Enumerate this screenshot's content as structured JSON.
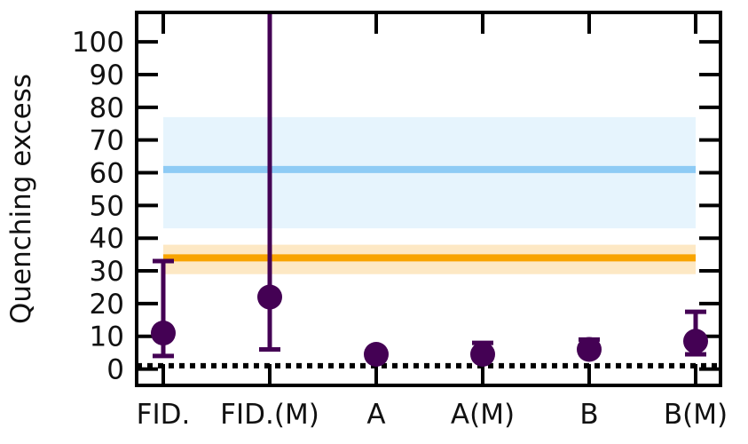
{
  "chart_data": {
    "type": "scatter",
    "ylabel": "Quenching excess",
    "xlabel": "",
    "categories": [
      "FID.",
      "FID.(M)",
      "A",
      "A(M)",
      "B",
      "B(M)"
    ],
    "ylim": [
      -5,
      109
    ],
    "yticks": [
      0,
      10,
      20,
      30,
      40,
      50,
      60,
      70,
      80,
      90,
      100
    ],
    "grid": false,
    "series": [
      {
        "values": [
          11,
          22,
          4.5,
          4.5,
          6,
          8.5
        ],
        "err_low": [
          4,
          6,
          null,
          null,
          null,
          4.5
        ],
        "err_high": [
          33,
          109,
          null,
          8,
          9,
          17.5
        ],
        "color": "#440154"
      }
    ],
    "reference_lines": [
      {
        "y": 61,
        "band": [
          43,
          77
        ],
        "color": "#8ecbf5",
        "band_color": "#e6f4fd"
      },
      {
        "y": 34,
        "band": [
          29,
          38
        ],
        "color": "#f8a400",
        "band_color": "#fde8c4"
      },
      {
        "y": 1,
        "style": "dotted",
        "color": "#000000"
      }
    ]
  }
}
